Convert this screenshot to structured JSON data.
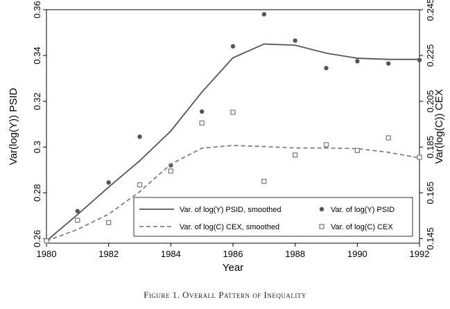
{
  "caption": "Figure 1. Overall Pattern of Inequality",
  "chart_data": {
    "type": "line",
    "title": "",
    "xlabel": "Year",
    "ylabel_left": "Var(log(Y)) PSID",
    "ylabel_right": "Var(log(C)) CEX",
    "xlim": [
      1980,
      1992
    ],
    "xticks": [
      "1980",
      "1982",
      "1984",
      "1986",
      "1988",
      "1990",
      "1992"
    ],
    "ylim_left": [
      0.258,
      0.36
    ],
    "yticks_left": [
      "0.26",
      "0.28",
      "0.3",
      "0.32",
      "0.34",
      "0.36"
    ],
    "ylim_right": [
      0.143,
      0.245
    ],
    "yticks_right": [
      "0.145",
      "0.165",
      "0.185",
      "0.205",
      "0.225",
      "0.245"
    ],
    "legend_position": "lower-right",
    "colors": {
      "psid": "#555555",
      "cex": "#808080"
    },
    "series": [
      {
        "name": "Var. of log(Y) PSID, smoothed",
        "axis": "left",
        "style": "solid-line",
        "x": [
          1980,
          1981,
          1982,
          1983,
          1984,
          1985,
          1986,
          1987,
          1988,
          1989,
          1990,
          1991,
          1992
        ],
        "y": [
          0.259,
          0.2705,
          0.2825,
          0.294,
          0.307,
          0.324,
          0.339,
          0.345,
          0.3445,
          0.341,
          0.3388,
          0.3383,
          0.3383
        ]
      },
      {
        "name": "Var. of log(Y) PSID",
        "axis": "left",
        "style": "dot",
        "x": [
          1980,
          1981,
          1982,
          1983,
          1984,
          1985,
          1986,
          1987,
          1988,
          1989,
          1990,
          1991,
          1992
        ],
        "y": [
          0.259,
          0.272,
          0.2845,
          0.3045,
          0.292,
          0.3155,
          0.344,
          0.358,
          0.3465,
          0.3345,
          0.3375,
          0.3365,
          0.338
        ]
      },
      {
        "name": "Var. of log(C) CEX, smoothed",
        "axis": "right",
        "style": "dashed-line",
        "x": [
          1980,
          1981,
          1982,
          1983,
          1984,
          1985,
          1986,
          1987,
          1988,
          1989,
          1990,
          1991,
          1992
        ],
        "y": [
          0.144,
          0.149,
          0.1557,
          0.1655,
          0.1775,
          0.1845,
          0.1857,
          0.1852,
          0.1846,
          0.1846,
          0.1843,
          0.1827,
          0.1802
        ]
      },
      {
        "name": "Var. of log(C) CEX",
        "axis": "right",
        "style": "hollow-square",
        "x": [
          1980,
          1981,
          1982,
          1983,
          1984,
          1985,
          1986,
          1987,
          1988,
          1989,
          1990,
          1991,
          1992
        ],
        "y": [
          0.144,
          0.153,
          0.152,
          0.1685,
          0.1745,
          0.1955,
          0.2002,
          0.17,
          0.1815,
          0.186,
          0.1835,
          0.189,
          0.1805
        ]
      }
    ]
  }
}
